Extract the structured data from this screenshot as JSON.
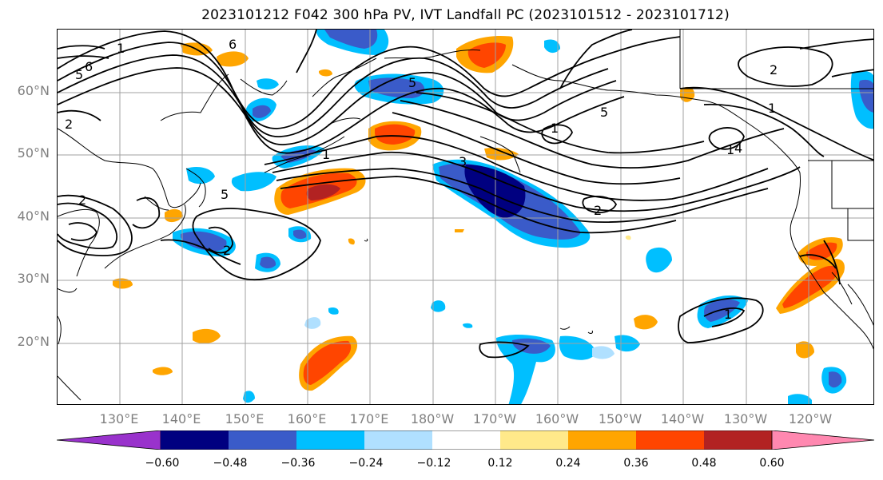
{
  "title": "2023101212 F042 300 hPa PV, IVT Landfall PC (2023101512 - 2023101712)",
  "lat_labels": [
    "60°N",
    "50°N",
    "40°N",
    "30°N",
    "20°N"
  ],
  "lon_labels": [
    "130°E",
    "140°E",
    "150°E",
    "160°E",
    "170°E",
    "180°W",
    "170°W",
    "160°W",
    "150°W",
    "140°W",
    "130°W",
    "120°W"
  ],
  "colorbar": {
    "colors": [
      "#9932cc",
      "#000080",
      "#3a5bc9",
      "#00bfff",
      "#b0e0ff",
      "#ffffff",
      "#ffe98a",
      "#ffa500",
      "#ff4500",
      "#b22222",
      "#ff88b0"
    ],
    "tick_labels": [
      "−0.60",
      "−0.48",
      "−0.36",
      "−0.24",
      "−0.12",
      "0.12",
      "0.24",
      "0.36",
      "0.48",
      "0.60"
    ]
  },
  "contour_labels": [
    "6",
    "5",
    "6",
    "1",
    "2",
    "1",
    "3",
    "1",
    "5",
    "1",
    "2",
    "1",
    "4",
    "5",
    "2",
    "2",
    "5",
    "2",
    "1"
  ],
  "gridlines": true,
  "map_colors": {
    "coast": "#000000",
    "grid": "#a0a0a0",
    "axis_text": "#808080"
  }
}
